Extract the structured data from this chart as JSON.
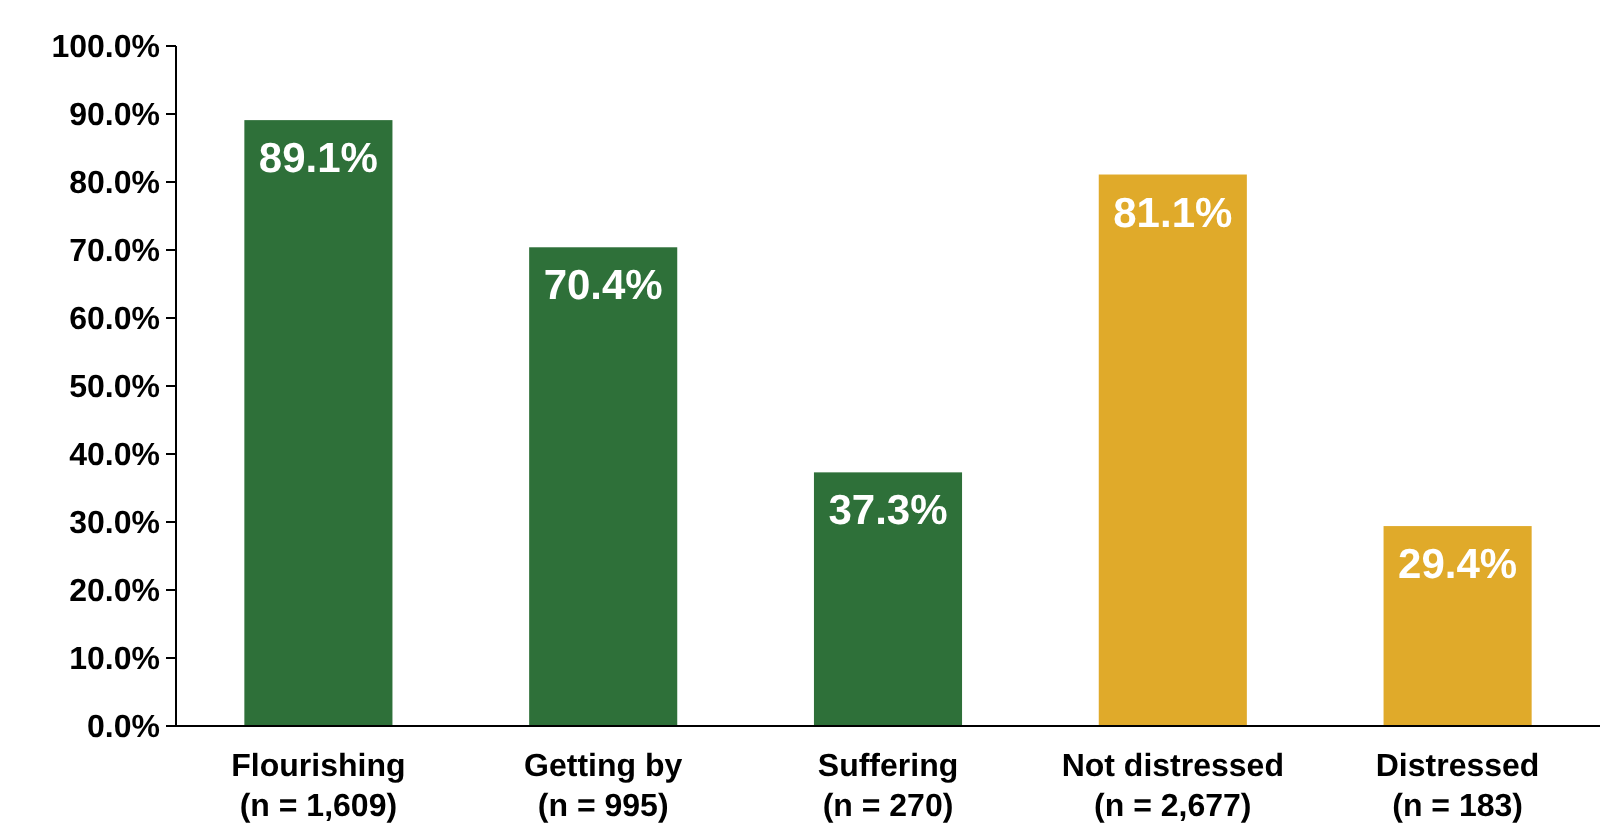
{
  "chart_data": {
    "type": "bar",
    "categories": [
      "Flourishing\n(n = 1,609)",
      "Getting by\n(n = 995)",
      "Suffering\n(n = 270)",
      "Not distressed\n(n = 2,677)",
      "Distressed\n(n = 183)"
    ],
    "values": [
      89.1,
      70.4,
      37.3,
      81.1,
      29.4
    ],
    "colors": [
      "#2e7039",
      "#2e7039",
      "#2e7039",
      "#e0aa2a",
      "#e0aa2a"
    ],
    "value_labels": [
      "89.1%",
      "70.4%",
      "37.3%",
      "81.1%",
      "29.4%"
    ],
    "ylim": [
      0,
      100
    ],
    "yticks": [
      {
        "value": 0,
        "label": "0.0%"
      },
      {
        "value": 10,
        "label": "10.0%"
      },
      {
        "value": 20,
        "label": "20.0%"
      },
      {
        "value": 30,
        "label": "30.0%"
      },
      {
        "value": 40,
        "label": "40.0%"
      },
      {
        "value": 50,
        "label": "50.0%"
      },
      {
        "value": 60,
        "label": "60.0%"
      },
      {
        "value": 70,
        "label": "70.0%"
      },
      {
        "value": 80,
        "label": "80.0%"
      },
      {
        "value": 90,
        "label": "90.0%"
      },
      {
        "value": 100,
        "label": "100.0%"
      }
    ],
    "grid": false
  }
}
